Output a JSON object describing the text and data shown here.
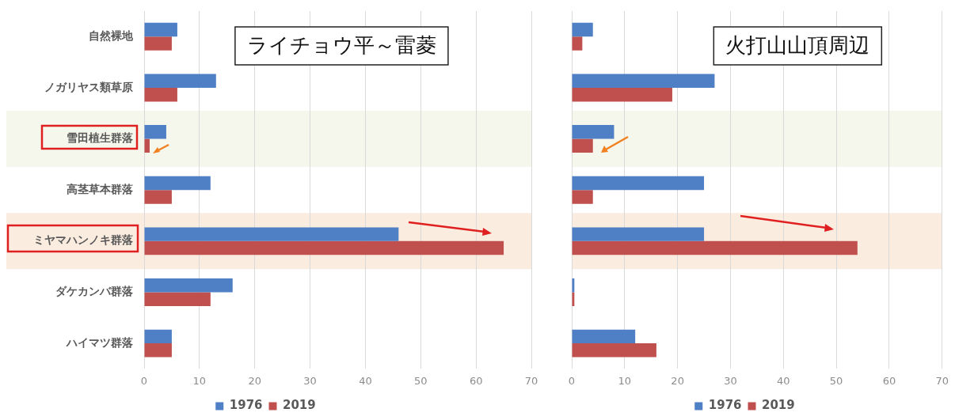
{
  "chart_data": [
    {
      "type": "bar",
      "orientation": "horizontal",
      "title": "ライチョウ平～雷菱",
      "categories": [
        "自然裸地",
        "ノガリヤス類草原",
        "雪田植生群落",
        "高茎草本群落",
        "ミヤマハンノキ群落",
        "ダケカンバ群落",
        "ハイマツ群落"
      ],
      "series": [
        {
          "name": "1976",
          "color": "#4f7fc4",
          "values": [
            6,
            13,
            4,
            12,
            46,
            16,
            5
          ]
        },
        {
          "name": "2019",
          "color": "#c0504d",
          "values": [
            5,
            6,
            1,
            5,
            65,
            12,
            5
          ]
        }
      ],
      "xlim": [
        0,
        70
      ],
      "xticks": [
        0,
        10,
        20,
        30,
        40,
        50,
        60,
        70
      ],
      "grid": "x",
      "legend": "bottom",
      "bands": [
        {
          "axis": "y",
          "from": "雪田植生群落",
          "to": "雪田植生群落",
          "color": "#f6f7ec"
        },
        {
          "axis": "y",
          "from": "ミヤマハンノキ群落",
          "to": "ミヤマハンノキ群落",
          "color": "#fbece0"
        }
      ]
    },
    {
      "type": "bar",
      "orientation": "horizontal",
      "title": "火打山山頂周辺",
      "categories": [
        "自然裸地",
        "ノガリヤス類草原",
        "雪田植生群落",
        "高茎草本群落",
        "ミヤマハンノキ群落",
        "ダケカンバ群落",
        "ハイマツ群落"
      ],
      "series": [
        {
          "name": "1976",
          "color": "#4f7fc4",
          "values": [
            4,
            27,
            8,
            25,
            25,
            0.5,
            12
          ]
        },
        {
          "name": "2019",
          "color": "#c0504d",
          "values": [
            2,
            19,
            4,
            4,
            54,
            0.5,
            16
          ]
        }
      ],
      "xlim": [
        0,
        70
      ],
      "xticks": [
        0,
        10,
        20,
        30,
        40,
        50,
        60,
        70
      ],
      "grid": "x",
      "legend": "bottom",
      "tick_labels": "x",
      "bands": [
        {
          "axis": "y",
          "from": "雪田植生群落",
          "to": "雪田植生群落",
          "color": "#f6f7ec"
        },
        {
          "axis": "y",
          "from": "ミヤマハンノキ群落",
          "to": "ミヤマハンノキ群落",
          "color": "#fbece0"
        }
      ]
    }
  ]
}
